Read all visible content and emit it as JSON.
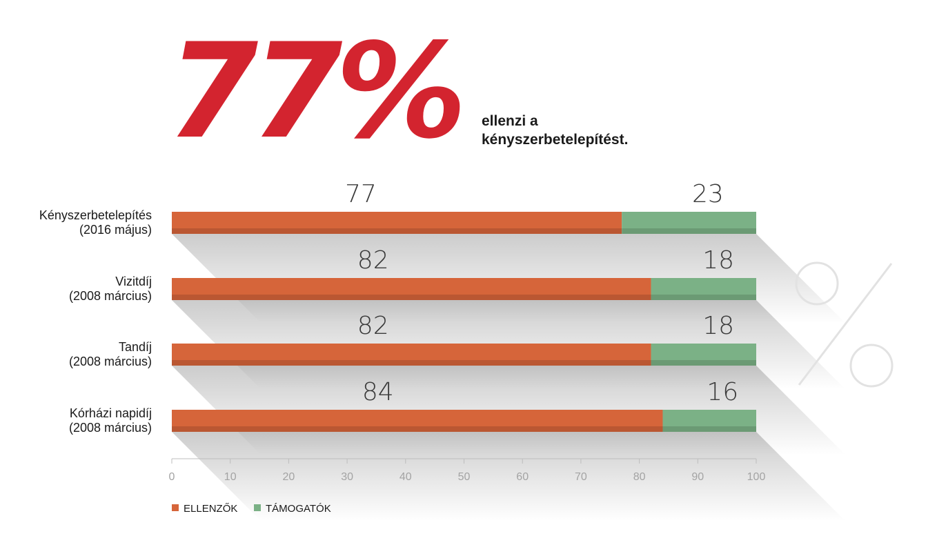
{
  "headline": {
    "value": "77%",
    "line1": "ellenzi a",
    "line2": "kényszerbetelepítést."
  },
  "colors": {
    "headline": "#d3242f",
    "ellenzok": "#d6653a",
    "tamogatok": "#7bb186"
  },
  "chart_data": {
    "type": "bar",
    "orientation": "horizontal",
    "stacked": true,
    "categories": [
      [
        "Kényszerbetelepítés",
        "(2016 május)"
      ],
      [
        "Vizitdíj",
        "(2008 március)"
      ],
      [
        "Tandíj",
        "(2008 március)"
      ],
      [
        "Kórházi napidíj",
        "(2008 március)"
      ]
    ],
    "series": [
      {
        "name": "ELLENZŐK",
        "values": [
          77,
          82,
          82,
          84
        ]
      },
      {
        "name": "TÁMOGATÓK",
        "values": [
          23,
          18,
          18,
          16
        ]
      }
    ],
    "xlim": [
      0,
      100
    ],
    "xticks": [
      0,
      10,
      20,
      30,
      40,
      50,
      60,
      70,
      80,
      90,
      100
    ],
    "legend_position": "bottom-left",
    "grid": false
  }
}
